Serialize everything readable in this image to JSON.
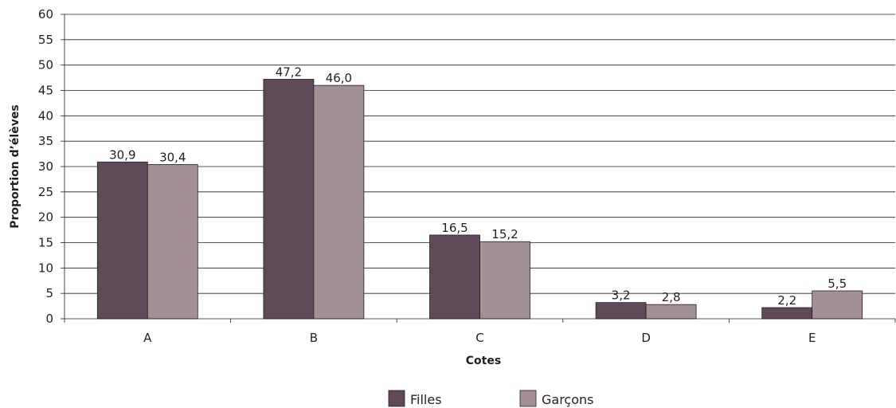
{
  "chart_data": {
    "type": "bar",
    "categories": [
      "A",
      "B",
      "C",
      "D",
      "E"
    ],
    "series": [
      {
        "name": "Filles",
        "values": [
          30.9,
          47.2,
          16.5,
          3.2,
          2.2
        ],
        "labels": [
          "30,9",
          "47,2",
          "16,5",
          "3,2",
          "2,2"
        ],
        "color": "#614a58"
      },
      {
        "name": "Garçons",
        "values": [
          30.4,
          46.0,
          15.2,
          2.8,
          5.5
        ],
        "labels": [
          "30,4",
          "46,0",
          "15,2",
          "2,8",
          "5,5"
        ],
        "color": "#a39094"
      }
    ],
    "title": "",
    "xlabel": "Cotes",
    "ylabel": "Proportion d’élèves",
    "ylim": [
      0,
      60
    ],
    "yticks": [
      0,
      5,
      10,
      15,
      20,
      25,
      30,
      35,
      40,
      45,
      50,
      55,
      60
    ],
    "grid": true,
    "legend_position": "bottom-center"
  }
}
